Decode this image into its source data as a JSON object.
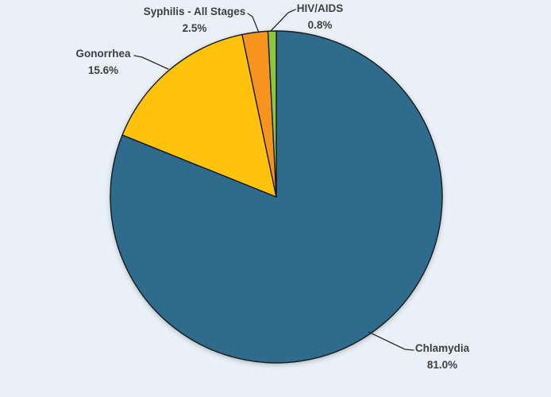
{
  "page": {
    "background_color": "#E9F0F7",
    "label_text_color": "#3F3F3F"
  },
  "chart_data": {
    "type": "pie",
    "start_angle_deg": -90,
    "direction": "clockwise",
    "label_position": "outside-with-leader-lines",
    "legend": "none",
    "outline_color": "#1A1A1A",
    "leader_line_color": "#2B2B2B",
    "slices": [
      {
        "label": "Chlamydia",
        "value": 81.0,
        "pct_label": "81.0%",
        "color": "#2E6B8C"
      },
      {
        "label": "Gonorrhea",
        "value": 15.6,
        "pct_label": "15.6%",
        "color": "#FFC20D"
      },
      {
        "label": "Syphilis - All Stages",
        "value": 2.5,
        "pct_label": "2.5%",
        "color": "#F7941D"
      },
      {
        "label": "HIV/AIDS",
        "value": 0.8,
        "pct_label": "0.8%",
        "color": "#8CC63F"
      }
    ]
  }
}
